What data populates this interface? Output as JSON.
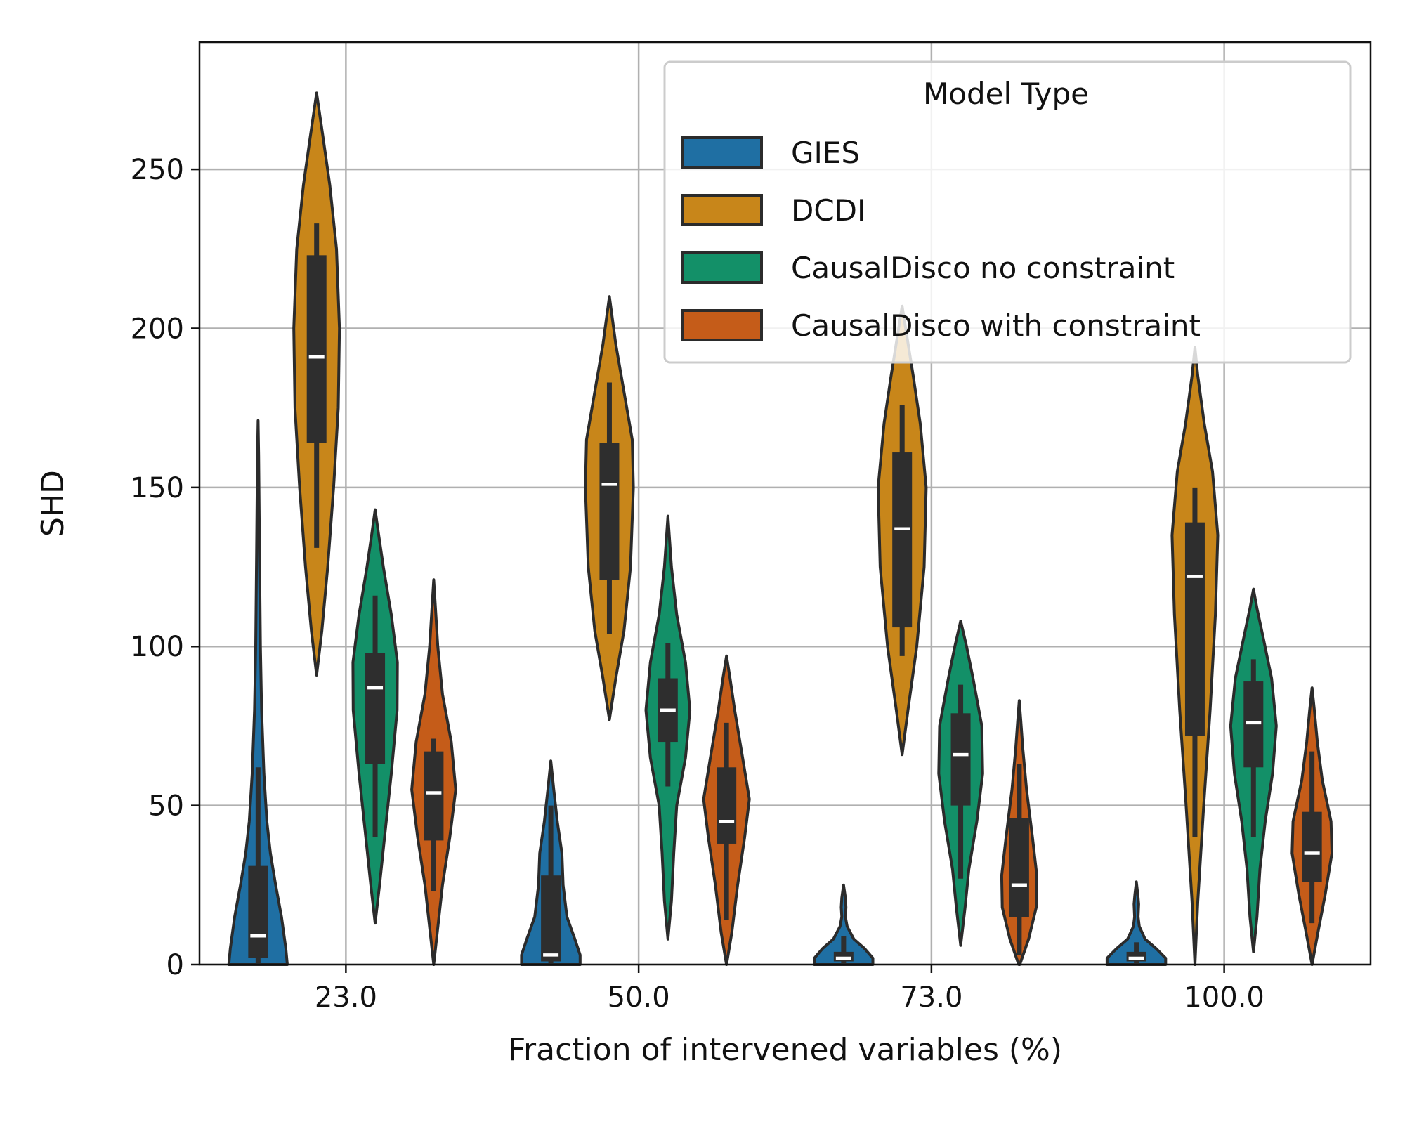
{
  "chart_data": {
    "type": "violin",
    "xlabel": "Fraction of intervened variables (%)",
    "ylabel": "SHD",
    "categories": [
      "23.0",
      "50.0",
      "73.0",
      "100.0"
    ],
    "ylim": [
      0,
      290
    ],
    "yticks": [
      0,
      50,
      100,
      150,
      200,
      250
    ],
    "grid": true,
    "legend": {
      "title": "Model Type",
      "placement": "top-right"
    },
    "series": [
      {
        "name": "GIES",
        "color": "#1f6fa3",
        "groups": [
          {
            "min": 0,
            "max": 171,
            "q1": 2,
            "median": 9,
            "q3": 31,
            "whisker_low": 0,
            "whisker_high": 62,
            "profile": [
              [
                0,
                1.0
              ],
              [
                5,
                0.95
              ],
              [
                15,
                0.8
              ],
              [
                25,
                0.6
              ],
              [
                35,
                0.42
              ],
              [
                45,
                0.3
              ],
              [
                60,
                0.2
              ],
              [
                80,
                0.12
              ],
              [
                100,
                0.08
              ],
              [
                130,
                0.05
              ],
              [
                160,
                0.02
              ],
              [
                171,
                0
              ]
            ]
          },
          {
            "min": 0,
            "max": 64,
            "q1": 1,
            "median": 3,
            "q3": 28,
            "whisker_low": 0,
            "whisker_high": 50,
            "profile": [
              [
                0,
                1.0
              ],
              [
                3,
                1.0
              ],
              [
                8,
                0.82
              ],
              [
                15,
                0.55
              ],
              [
                25,
                0.42
              ],
              [
                35,
                0.38
              ],
              [
                45,
                0.22
              ],
              [
                55,
                0.1
              ],
              [
                64,
                0
              ]
            ]
          },
          {
            "min": 0,
            "max": 25,
            "q1": 1,
            "median": 2,
            "q3": 4,
            "whisker_low": 0,
            "whisker_high": 9,
            "profile": [
              [
                0,
                1.0
              ],
              [
                2,
                1.0
              ],
              [
                5,
                0.72
              ],
              [
                8,
                0.35
              ],
              [
                12,
                0.12
              ],
              [
                15,
                0.06
              ],
              [
                18,
                0.08
              ],
              [
                21,
                0.06
              ],
              [
                25,
                0
              ]
            ]
          },
          {
            "min": 0,
            "max": 26,
            "q1": 1,
            "median": 2,
            "q3": 4,
            "whisker_low": 0,
            "whisker_high": 7,
            "profile": [
              [
                0,
                1.0
              ],
              [
                2,
                1.0
              ],
              [
                5,
                0.68
              ],
              [
                8,
                0.3
              ],
              [
                12,
                0.1
              ],
              [
                15,
                0.06
              ],
              [
                19,
                0.08
              ],
              [
                22,
                0.05
              ],
              [
                26,
                0
              ]
            ]
          }
        ]
      },
      {
        "name": "DCDI",
        "color": "#c8861a",
        "groups": [
          {
            "min": 91,
            "max": 274,
            "q1": 164,
            "median": 191,
            "q3": 223,
            "whisker_low": 131,
            "whisker_high": 233,
            "profile": [
              [
                91,
                0
              ],
              [
                105,
                0.18
              ],
              [
                125,
                0.38
              ],
              [
                150,
                0.58
              ],
              [
                175,
                0.74
              ],
              [
                200,
                0.78
              ],
              [
                225,
                0.68
              ],
              [
                245,
                0.45
              ],
              [
                260,
                0.22
              ],
              [
                274,
                0
              ]
            ]
          },
          {
            "min": 77,
            "max": 210,
            "q1": 121,
            "median": 151,
            "q3": 164,
            "whisker_low": 104,
            "whisker_high": 183,
            "profile": [
              [
                77,
                0
              ],
              [
                90,
                0.22
              ],
              [
                105,
                0.5
              ],
              [
                125,
                0.72
              ],
              [
                150,
                0.82
              ],
              [
                165,
                0.78
              ],
              [
                180,
                0.5
              ],
              [
                195,
                0.22
              ],
              [
                210,
                0
              ]
            ]
          },
          {
            "min": 66,
            "max": 207,
            "q1": 106,
            "median": 137,
            "q3": 161,
            "whisker_low": 97,
            "whisker_high": 176,
            "profile": [
              [
                66,
                0
              ],
              [
                80,
                0.2
              ],
              [
                100,
                0.5
              ],
              [
                125,
                0.75
              ],
              [
                150,
                0.82
              ],
              [
                170,
                0.62
              ],
              [
                185,
                0.38
              ],
              [
                200,
                0.12
              ],
              [
                207,
                0
              ]
            ]
          },
          {
            "min": 0,
            "max": 194,
            "q1": 72,
            "median": 122,
            "q3": 139,
            "whisker_low": 40,
            "whisker_high": 150,
            "profile": [
              [
                0,
                0
              ],
              [
                20,
                0.1
              ],
              [
                50,
                0.3
              ],
              [
                80,
                0.52
              ],
              [
                110,
                0.7
              ],
              [
                135,
                0.78
              ],
              [
                155,
                0.6
              ],
              [
                170,
                0.32
              ],
              [
                185,
                0.1
              ],
              [
                194,
                0
              ]
            ]
          }
        ]
      },
      {
        "name": "CausalDisco no constraint",
        "color": "#139068",
        "groups": [
          {
            "min": 13,
            "max": 143,
            "q1": 63,
            "median": 87,
            "q3": 98,
            "whisker_low": 40,
            "whisker_high": 116,
            "profile": [
              [
                13,
                0
              ],
              [
                25,
                0.15
              ],
              [
                40,
                0.32
              ],
              [
                60,
                0.55
              ],
              [
                80,
                0.75
              ],
              [
                95,
                0.76
              ],
              [
                110,
                0.55
              ],
              [
                125,
                0.28
              ],
              [
                135,
                0.12
              ],
              [
                143,
                0
              ]
            ]
          },
          {
            "min": 8,
            "max": 141,
            "q1": 70,
            "median": 80,
            "q3": 90,
            "whisker_low": 56,
            "whisker_high": 101,
            "profile": [
              [
                8,
                0
              ],
              [
                20,
                0.12
              ],
              [
                35,
                0.2
              ],
              [
                50,
                0.3
              ],
              [
                65,
                0.6
              ],
              [
                80,
                0.75
              ],
              [
                95,
                0.6
              ],
              [
                110,
                0.3
              ],
              [
                125,
                0.12
              ],
              [
                141,
                0
              ]
            ]
          },
          {
            "min": 6,
            "max": 108,
            "q1": 50,
            "median": 66,
            "q3": 79,
            "whisker_low": 27,
            "whisker_high": 88,
            "profile": [
              [
                6,
                0
              ],
              [
                18,
                0.15
              ],
              [
                30,
                0.28
              ],
              [
                45,
                0.55
              ],
              [
                60,
                0.75
              ],
              [
                75,
                0.72
              ],
              [
                90,
                0.42
              ],
              [
                100,
                0.2
              ],
              [
                108,
                0
              ]
            ]
          },
          {
            "min": 4,
            "max": 118,
            "q1": 62,
            "median": 76,
            "q3": 89,
            "whisker_low": 40,
            "whisker_high": 96,
            "profile": [
              [
                4,
                0
              ],
              [
                15,
                0.12
              ],
              [
                30,
                0.22
              ],
              [
                45,
                0.4
              ],
              [
                60,
                0.65
              ],
              [
                75,
                0.78
              ],
              [
                90,
                0.62
              ],
              [
                102,
                0.35
              ],
              [
                112,
                0.12
              ],
              [
                118,
                0
              ]
            ]
          }
        ]
      },
      {
        "name": "CausalDisco with constraint",
        "color": "#c55c19",
        "groups": [
          {
            "min": 0,
            "max": 121,
            "q1": 39,
            "median": 54,
            "q3": 67,
            "whisker_low": 23,
            "whisker_high": 71,
            "profile": [
              [
                0,
                0
              ],
              [
                10,
                0.12
              ],
              [
                25,
                0.3
              ],
              [
                40,
                0.55
              ],
              [
                55,
                0.75
              ],
              [
                70,
                0.6
              ],
              [
                85,
                0.3
              ],
              [
                100,
                0.14
              ],
              [
                112,
                0.06
              ],
              [
                121,
                0
              ]
            ]
          },
          {
            "min": 0,
            "max": 97,
            "q1": 38,
            "median": 45,
            "q3": 62,
            "whisker_low": 14,
            "whisker_high": 76,
            "profile": [
              [
                0,
                0
              ],
              [
                10,
                0.18
              ],
              [
                25,
                0.38
              ],
              [
                40,
                0.62
              ],
              [
                52,
                0.78
              ],
              [
                65,
                0.55
              ],
              [
                80,
                0.28
              ],
              [
                90,
                0.12
              ],
              [
                97,
                0
              ]
            ]
          },
          {
            "min": 0,
            "max": 83,
            "q1": 15,
            "median": 25,
            "q3": 46,
            "whisker_low": 3,
            "whisker_high": 63,
            "profile": [
              [
                0,
                0.02
              ],
              [
                8,
                0.32
              ],
              [
                18,
                0.58
              ],
              [
                28,
                0.6
              ],
              [
                40,
                0.45
              ],
              [
                55,
                0.25
              ],
              [
                68,
                0.12
              ],
              [
                77,
                0.05
              ],
              [
                83,
                0
              ]
            ]
          },
          {
            "min": 0,
            "max": 87,
            "q1": 26,
            "median": 35,
            "q3": 48,
            "whisker_low": 13,
            "whisker_high": 67,
            "profile": [
              [
                0,
                0
              ],
              [
                10,
                0.2
              ],
              [
                22,
                0.45
              ],
              [
                35,
                0.68
              ],
              [
                45,
                0.65
              ],
              [
                58,
                0.35
              ],
              [
                70,
                0.18
              ],
              [
                80,
                0.08
              ],
              [
                87,
                0
              ]
            ]
          }
        ]
      }
    ]
  }
}
